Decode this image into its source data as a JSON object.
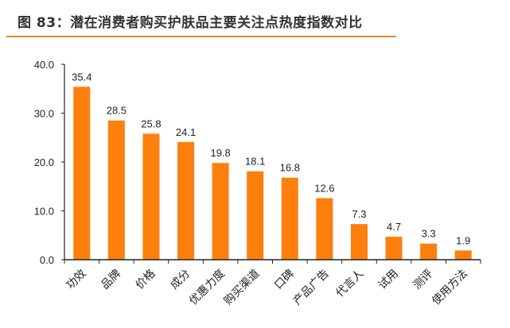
{
  "header": {
    "title": "图 83：潜在消费者购买护肤品主要关注点热度指数对比"
  },
  "colors": {
    "bar": "#ff7f0e",
    "rule": "#e8872a"
  },
  "chart_data": {
    "type": "bar",
    "title": "图 83：潜在消费者购买护肤品主要关注点热度指数对比",
    "categories": [
      "功效",
      "品牌",
      "价格",
      "成分",
      "优惠力度",
      "购买渠道",
      "口碑",
      "产品广告",
      "代言人",
      "试用",
      "测评",
      "使用方法"
    ],
    "values": [
      35.4,
      28.5,
      25.8,
      24.1,
      19.8,
      18.1,
      16.8,
      12.6,
      7.3,
      4.7,
      3.3,
      1.9
    ],
    "value_labels": [
      "35.4",
      "28.5",
      "25.8",
      "24.1",
      "19.8",
      "18.1",
      "16.8",
      "12.6",
      "7.3",
      "4.7",
      "3.3",
      "1.9"
    ],
    "xlabel": "",
    "ylabel": "",
    "ylim": [
      0,
      40
    ],
    "yticks": [
      "0.0",
      "10.0",
      "20.0",
      "30.0",
      "40.0"
    ],
    "grid": false,
    "legend": null
  }
}
